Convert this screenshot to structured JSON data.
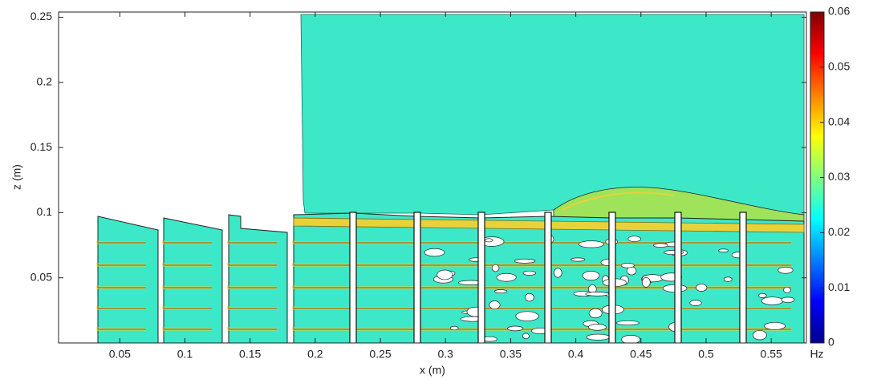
{
  "chart_data": {
    "type": "contour",
    "xlabel": "x (m)",
    "ylabel": "z (m)",
    "xlim": [
      0.003,
      0.577
    ],
    "xticks": [
      0.05,
      0.1,
      0.15,
      0.2,
      0.25,
      0.3,
      0.35,
      0.4,
      0.45,
      0.5,
      0.55
    ],
    "ylim": [
      0,
      0.254
    ],
    "yticks": [
      0.05,
      0.1,
      0.15,
      0.2,
      0.25
    ],
    "colorbar": {
      "label": "Hz",
      "lim": [
        0,
        0.06
      ],
      "ticks": [
        0,
        0.01,
        0.02,
        0.03,
        0.04,
        0.05,
        0.06
      ]
    }
  }
}
